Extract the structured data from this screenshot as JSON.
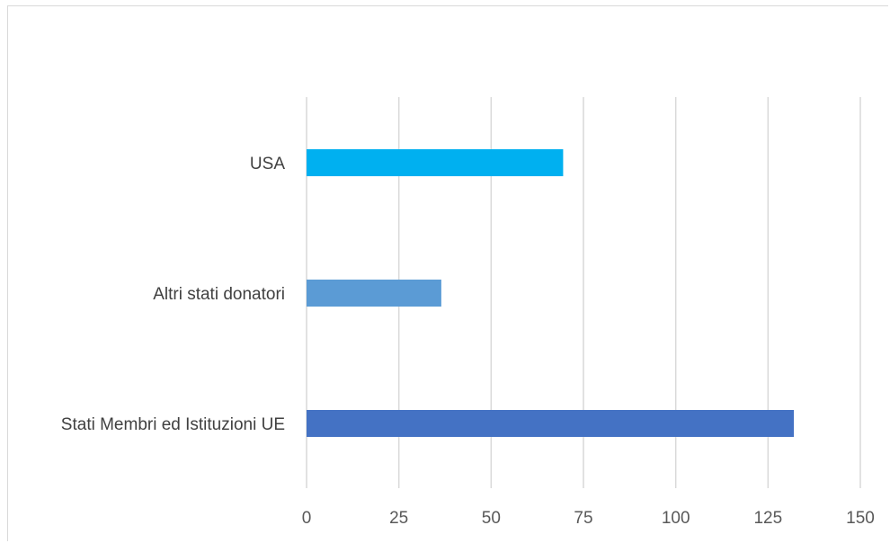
{
  "chart_data": {
    "type": "bar",
    "orientation": "horizontal",
    "categories": [
      "USA",
      "Altri stati donatori",
      "Stati Membri ed Istituzioni UE"
    ],
    "values": [
      69.5,
      36.5,
      132
    ],
    "colors": [
      "#00B0F0",
      "#5B9BD5",
      "#4472C4"
    ],
    "xlim": [
      0,
      150
    ],
    "xticks": [
      "0",
      "25",
      "50",
      "75",
      "100",
      "125",
      "150"
    ],
    "title": "",
    "xlabel": "",
    "ylabel": "",
    "grid": "vertical",
    "legend": "none"
  }
}
